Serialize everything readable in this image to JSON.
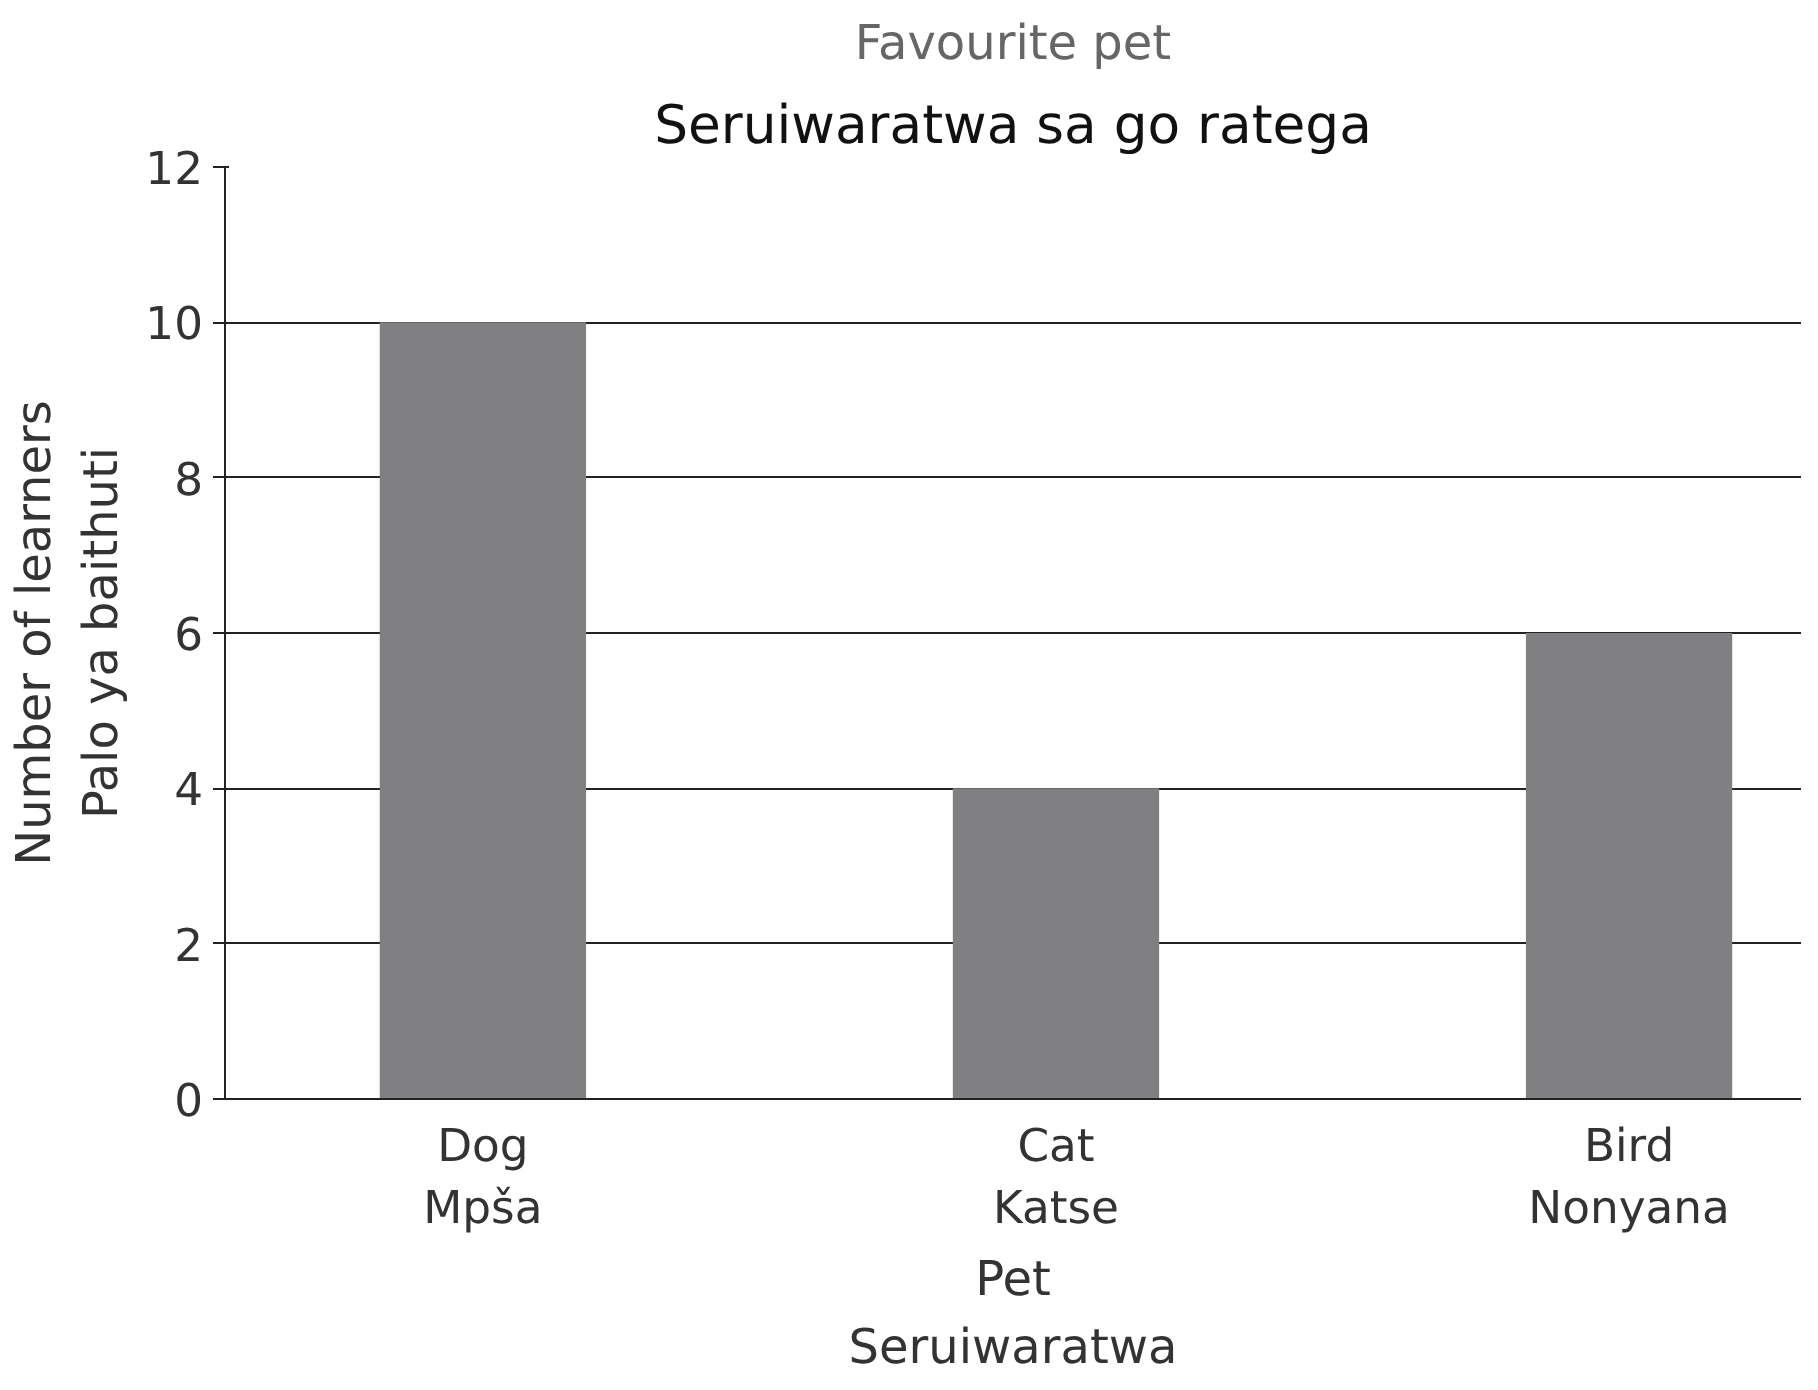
{
  "chart_data": {
    "type": "bar",
    "title": "Favourite pet",
    "subtitle": "Seruiwaratwa sa go ratega",
    "xlabel": "Pet\nSeruiwaratwa",
    "ylabel": "Number of learners\nPalo ya baithuti",
    "categories": [
      "Dog\nMpša",
      "Cat\nKatse",
      "Bird\nNonyana"
    ],
    "values": [
      10,
      4,
      6
    ],
    "color": "#808083",
    "ylim": [
      0,
      12
    ],
    "yticks": [
      0,
      2,
      4,
      6,
      8,
      10,
      12
    ],
    "grid": "y"
  }
}
